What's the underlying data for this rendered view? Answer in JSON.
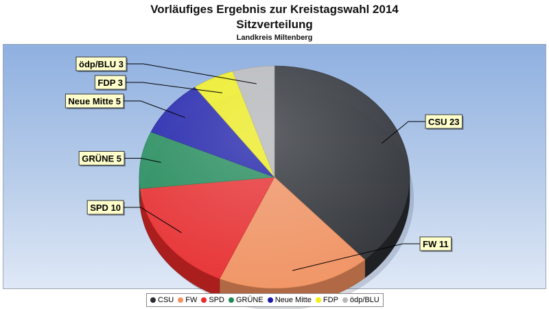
{
  "chart_data": {
    "type": "pie",
    "title": "Vorläufiges Ergebnis zur Kreistagswahl 2014",
    "subtitle": "Sitzverteilung",
    "subsubtitle": "Landkreis Miltenberg",
    "slices": [
      {
        "name": "CSU",
        "value": 23,
        "label": "CSU 23",
        "color": "#2a2c30"
      },
      {
        "name": "FW",
        "value": 11,
        "label": "FW 11",
        "color": "#f5925e"
      },
      {
        "name": "SPD",
        "value": 10,
        "label": "SPD 10",
        "color": "#ec2a2a"
      },
      {
        "name": "GRÜNE",
        "value": 5,
        "label": "GRÜNE 5",
        "color": "#1f8a56"
      },
      {
        "name": "Neue Mitte",
        "value": 5,
        "label": "Neue Mitte 5",
        "color": "#1a1aa8"
      },
      {
        "name": "FDP",
        "value": 3,
        "label": "FDP 3",
        "color": "#f3f017"
      },
      {
        "name": "ödp/BLU",
        "value": 3,
        "label": "ödp/BLU 3",
        "color": "#b9b9b9"
      }
    ],
    "legend_position": "bottom",
    "style": "3d"
  }
}
